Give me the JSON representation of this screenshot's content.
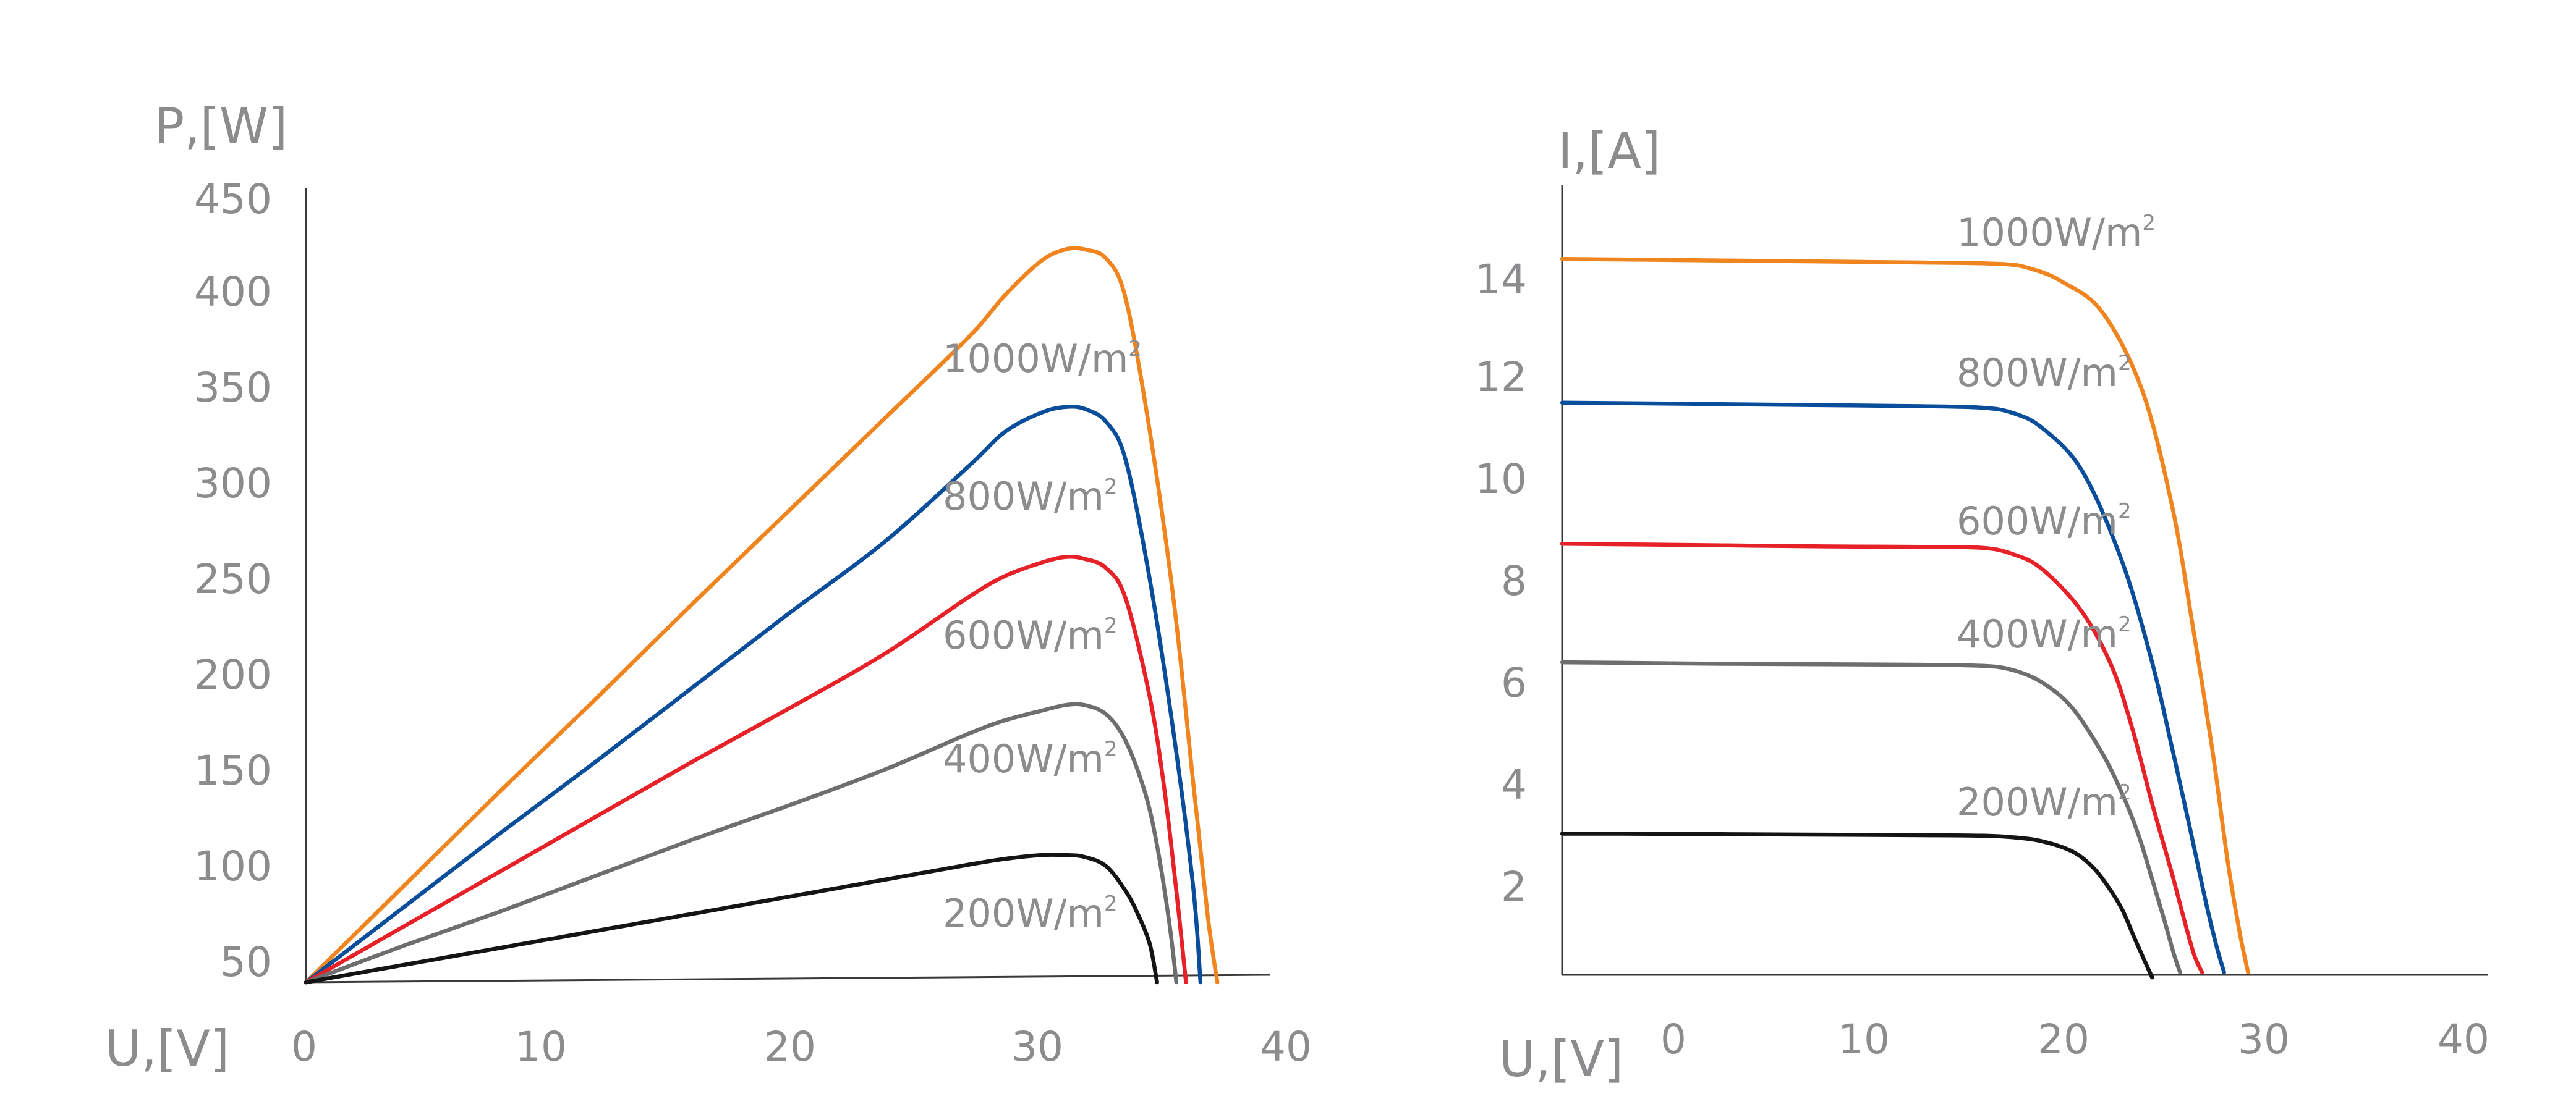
{
  "colors": {
    "1000": "#f0841e",
    "800": "#0a4d9b",
    "600": "#e62127",
    "400": "#6e6e70",
    "200": "#141414"
  },
  "chart_data": [
    {
      "type": "line",
      "xlabel": "U,[V]",
      "ylabel": "P,[W]",
      "xticks": [
        "0",
        "10",
        "20",
        "30",
        "40"
      ],
      "yticks": [
        "50",
        "100",
        "150",
        "200",
        "250",
        "300",
        "350",
        "400",
        "450"
      ],
      "xlim": [
        0,
        40
      ],
      "ylim": [
        50,
        460
      ],
      "series": [
        {
          "name": "1000W/m",
          "sup": "2",
          "color_key": "1000",
          "x": [
            0,
            4,
            8,
            12,
            16,
            20,
            24,
            27.5,
            29,
            30.5,
            31.5,
            32.3,
            33.2,
            34,
            35,
            36,
            36.8,
            37.4,
            37.8
          ],
          "y": [
            50,
            100,
            150,
            199,
            249,
            298,
            347,
            390,
            412,
            430,
            436,
            436,
            431,
            410,
            340,
            250,
            155,
            85,
            50
          ]
        },
        {
          "name": "800W/m",
          "sup": "2",
          "color_key": "800",
          "x": [
            0,
            4,
            8,
            12,
            16,
            20,
            24,
            27.5,
            29,
            30.5,
            31.5,
            32.3,
            33.2,
            34,
            35,
            36,
            36.8,
            37.1
          ],
          "y": [
            50,
            89,
            128,
            166,
            205,
            244,
            282,
            322,
            340,
            350,
            353,
            352,
            345,
            325,
            262,
            180,
            100,
            50
          ]
        },
        {
          "name": "600W/m",
          "sup": "2",
          "color_key": "600",
          "x": [
            0,
            4,
            8,
            12,
            16,
            20,
            24,
            27.5,
            29,
            30.5,
            31.5,
            32.3,
            33.2,
            34,
            35,
            35.6,
            36.1,
            36.5
          ],
          "y": [
            50,
            79,
            108,
            137,
            166,
            194,
            223,
            253,
            264,
            271,
            274,
            273,
            268,
            252,
            200,
            152,
            98,
            50
          ]
        },
        {
          "name": "400W/m",
          "sup": "2",
          "color_key": "400",
          "x": [
            0,
            4,
            8,
            12,
            16,
            20,
            24,
            27.5,
            29,
            30.5,
            31.5,
            32.3,
            33.2,
            34,
            34.8,
            35.3,
            35.8,
            36.1
          ],
          "y": [
            50,
            69,
            87,
            106,
            125,
            143,
            162,
            181,
            188,
            193,
            196,
            196,
            191,
            177,
            150,
            122,
            82,
            50
          ]
        },
        {
          "name": "200W/m",
          "sup": "2",
          "color_key": "200",
          "x": [
            0,
            4,
            8,
            12,
            16,
            20,
            24,
            27.5,
            29,
            30.5,
            31.5,
            32.3,
            33.2,
            34,
            34.5,
            35,
            35.3
          ],
          "y": [
            50,
            59,
            68,
            77,
            86,
            95,
            104,
            112,
            115,
            117,
            117,
            116,
            111,
            98,
            86,
            70,
            50
          ]
        }
      ]
    },
    {
      "type": "line",
      "xlabel": "U,[V]",
      "ylabel": "I,[A]",
      "xticks": [
        "0",
        "10",
        "20",
        "30",
        "40"
      ],
      "yticks": [
        "2",
        "4",
        "6",
        "8",
        "10",
        "12",
        "14"
      ],
      "xlim": [
        -3,
        43
      ],
      "ylim": [
        0.2,
        15.8
      ],
      "series": [
        {
          "name": "1000W/m",
          "sup": "2",
          "color_key": "1000",
          "x": [
            -3,
            0,
            5,
            10,
            15,
            19,
            20.5,
            22,
            24,
            26,
            27.5,
            28.5,
            29.5,
            30.3,
            30.9,
            31.3
          ],
          "y": [
            14.4,
            14.39,
            14.37,
            14.35,
            14.33,
            14.3,
            14.2,
            13.95,
            13.35,
            11.8,
            9.5,
            7.2,
            4.7,
            2.4,
            1.0,
            0.25
          ]
        },
        {
          "name": "800W/m",
          "sup": "2",
          "color_key": "800",
          "x": [
            -3,
            0,
            5,
            10,
            15,
            18,
            19.5,
            21,
            23,
            25,
            26.5,
            27.5,
            28.4,
            29.1,
            29.7,
            30.1
          ],
          "y": [
            11.55,
            11.54,
            11.52,
            11.5,
            11.48,
            11.45,
            11.35,
            11.05,
            10.2,
            8.4,
            6.4,
            4.7,
            3.1,
            1.8,
            0.8,
            0.25
          ]
        },
        {
          "name": "600W/m",
          "sup": "2",
          "color_key": "600",
          "x": [
            -3,
            0,
            5,
            10,
            15,
            18,
            19.5,
            21,
            23,
            24.5,
            25.5,
            26.5,
            27.5,
            28.1,
            28.6,
            29.0
          ],
          "y": [
            8.75,
            8.74,
            8.72,
            8.7,
            8.69,
            8.67,
            8.55,
            8.25,
            7.4,
            6.3,
            5.1,
            3.6,
            2.2,
            1.3,
            0.6,
            0.25
          ]
        },
        {
          "name": "400W/m",
          "sup": "2",
          "color_key": "400",
          "x": [
            -3,
            0,
            5,
            10,
            15,
            18,
            19.5,
            21,
            22.5,
            24,
            25,
            25.8,
            26.5,
            27.1,
            27.6,
            27.9
          ],
          "y": [
            6.4,
            6.39,
            6.37,
            6.36,
            6.35,
            6.33,
            6.25,
            6.0,
            5.5,
            4.6,
            3.8,
            3.0,
            2.1,
            1.3,
            0.6,
            0.25
          ]
        },
        {
          "name": "200W/m",
          "sup": "2",
          "color_key": "200",
          "x": [
            -3,
            0,
            5,
            10,
            15,
            18,
            19.5,
            21,
            22.5,
            23.5,
            24.3,
            25,
            25.6,
            26.1,
            26.5
          ],
          "y": [
            3.0,
            3.0,
            2.99,
            2.98,
            2.97,
            2.96,
            2.93,
            2.85,
            2.65,
            2.35,
            1.95,
            1.5,
            0.95,
            0.5,
            0.15
          ]
        }
      ]
    }
  ]
}
